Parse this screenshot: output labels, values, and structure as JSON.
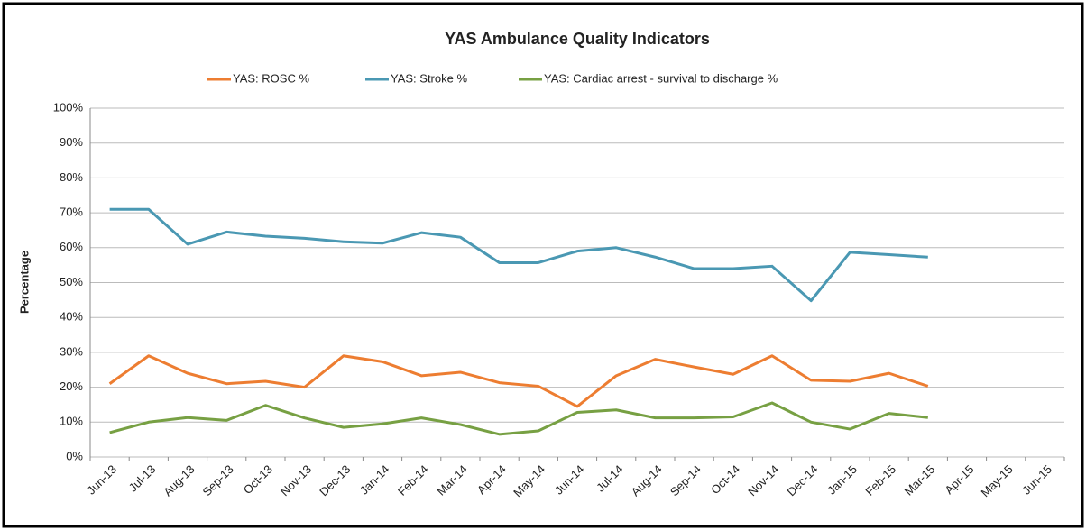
{
  "chart_data": {
    "type": "line",
    "title": "YAS Ambulance Quality Indicators",
    "ylabel": "Percentage",
    "categories": [
      "Jun-13",
      "Jul-13",
      "Aug-13",
      "Sep-13",
      "Oct-13",
      "Nov-13",
      "Dec-13",
      "Jan-14",
      "Feb-14",
      "Mar-14",
      "Apr-14",
      "May-14",
      "Jun-14",
      "Jul-14",
      "Aug-14",
      "Sep-14",
      "Oct-14",
      "Nov-14",
      "Dec-14",
      "Jan-15",
      "Feb-15",
      "Mar-15",
      "Apr-15",
      "May-15",
      "Jun-15"
    ],
    "series": [
      {
        "name": "YAS: ROSC %",
        "color": "#ed7d31",
        "values": [
          21,
          29,
          24,
          21,
          21.7,
          20,
          29,
          27.3,
          23.3,
          24.3,
          21.3,
          20.3,
          14.5,
          23.3,
          28,
          25.8,
          23.7,
          29,
          22,
          21.7,
          24,
          20.3,
          null,
          null,
          null
        ]
      },
      {
        "name": "YAS: Stroke %",
        "color": "#4a98b3",
        "values": [
          71,
          71,
          61,
          64.5,
          63.3,
          62.7,
          61.7,
          61.3,
          64.3,
          63,
          55.7,
          55.7,
          59,
          60,
          57.3,
          54,
          54,
          54.7,
          44.8,
          58.7,
          58,
          57.3,
          null,
          null,
          null
        ]
      },
      {
        "name": "YAS: Cardiac arrest - survival to discharge %",
        "color": "#77a043",
        "values": [
          7,
          10,
          11.3,
          10.5,
          14.8,
          11.2,
          8.5,
          9.5,
          11.2,
          9.3,
          6.5,
          7.5,
          12.8,
          13.5,
          11.2,
          11.2,
          11.5,
          15.5,
          10,
          8,
          12.5,
          11.3,
          null,
          null,
          null
        ]
      }
    ],
    "ylim": [
      0,
      100
    ],
    "yticks": [
      {
        "value": 0,
        "label": "0%"
      },
      {
        "value": 10,
        "label": "10%"
      },
      {
        "value": 20,
        "label": "20%"
      },
      {
        "value": 30,
        "label": "30%"
      },
      {
        "value": 40,
        "label": "40%"
      },
      {
        "value": 50,
        "label": "50%"
      },
      {
        "value": 60,
        "label": "60%"
      },
      {
        "value": 70,
        "label": "70%"
      },
      {
        "value": 80,
        "label": "80%"
      },
      {
        "value": 90,
        "label": "90%"
      },
      {
        "value": 100,
        "label": "100%"
      }
    ],
    "grid": true,
    "legend": "top"
  }
}
